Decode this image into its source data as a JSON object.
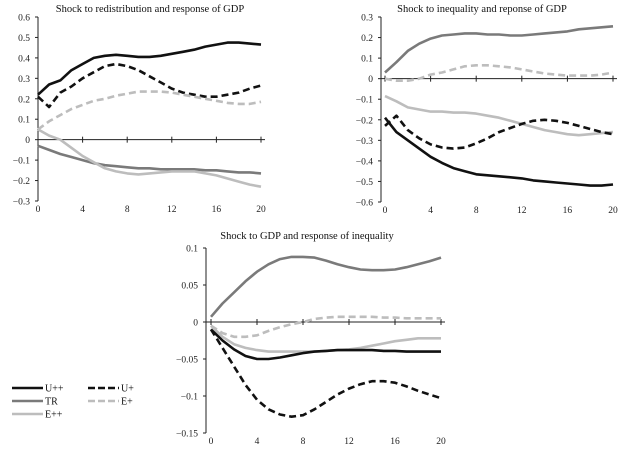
{
  "series_styles": {
    "U++": {
      "color": "#111111",
      "dashed": false
    },
    "U+": {
      "color": "#111111",
      "dashed": true
    },
    "TR": {
      "color": "#7a7a7a",
      "dashed": false
    },
    "E+": {
      "color": "#bdbdbd",
      "dashed": true
    },
    "E++": {
      "color": "#bdbdbd",
      "dashed": false
    }
  },
  "legend": [
    "U++",
    "U+",
    "TR",
    "E+",
    "E++"
  ],
  "chart_data": [
    {
      "type": "line",
      "title": "Shock to redistribution and response of GDP",
      "xlim": [
        0,
        20
      ],
      "xticks": [
        0,
        4,
        8,
        12,
        16,
        20
      ],
      "ylim": [
        -0.3,
        0.6
      ],
      "yticks": [
        -0.3,
        -0.2,
        -0.1,
        0,
        0.1,
        0.2,
        0.3,
        0.4,
        0.5,
        0.6
      ],
      "ytick_labels": [
        "−0.3",
        "−0.2",
        "−0.1",
        "0",
        "0.1",
        "0.2",
        "0.3",
        "0.4",
        "0.5",
        "0.6"
      ],
      "x": [
        0,
        1,
        2,
        3,
        4,
        5,
        6,
        7,
        8,
        9,
        10,
        11,
        12,
        13,
        14,
        15,
        16,
        17,
        18,
        19,
        20
      ],
      "series": [
        {
          "name": "U++",
          "values": [
            0.22,
            0.27,
            0.29,
            0.34,
            0.37,
            0.4,
            0.41,
            0.415,
            0.41,
            0.405,
            0.405,
            0.41,
            0.42,
            0.43,
            0.44,
            0.455,
            0.465,
            0.475,
            0.475,
            0.47,
            0.465
          ]
        },
        {
          "name": "U+",
          "values": [
            0.21,
            0.16,
            0.23,
            0.26,
            0.3,
            0.33,
            0.36,
            0.37,
            0.36,
            0.34,
            0.31,
            0.28,
            0.25,
            0.23,
            0.22,
            0.21,
            0.21,
            0.22,
            0.23,
            0.25,
            0.265
          ]
        },
        {
          "name": "E+",
          "values": [
            0.05,
            0.09,
            0.12,
            0.15,
            0.17,
            0.19,
            0.2,
            0.215,
            0.225,
            0.235,
            0.235,
            0.235,
            0.23,
            0.22,
            0.21,
            0.2,
            0.19,
            0.18,
            0.175,
            0.175,
            0.185
          ]
        },
        {
          "name": "TR",
          "values": [
            -0.03,
            -0.05,
            -0.07,
            -0.085,
            -0.1,
            -0.115,
            -0.125,
            -0.13,
            -0.135,
            -0.14,
            -0.14,
            -0.145,
            -0.145,
            -0.145,
            -0.145,
            -0.15,
            -0.15,
            -0.155,
            -0.16,
            -0.16,
            -0.165
          ]
        },
        {
          "name": "E++",
          "values": [
            0.05,
            0.02,
            0.0,
            -0.04,
            -0.08,
            -0.11,
            -0.14,
            -0.155,
            -0.165,
            -0.17,
            -0.165,
            -0.16,
            -0.155,
            -0.155,
            -0.155,
            -0.165,
            -0.175,
            -0.19,
            -0.205,
            -0.22,
            -0.23
          ]
        }
      ]
    },
    {
      "type": "line",
      "title": "Shock to inequality and reponse of GDP",
      "xlim": [
        0,
        20
      ],
      "xticks": [
        0,
        4,
        8,
        12,
        16,
        20
      ],
      "ylim": [
        -0.6,
        0.3
      ],
      "yticks": [
        -0.6,
        -0.5,
        -0.4,
        -0.3,
        -0.2,
        -0.1,
        0,
        0.1,
        0.2,
        0.3
      ],
      "ytick_labels": [
        "−0.6",
        "−0.5",
        "−0.4",
        "−0.3",
        "−0.2",
        "−0.1",
        "0",
        "0.1",
        "0.2",
        "0.3"
      ],
      "x": [
        0,
        1,
        2,
        3,
        4,
        5,
        6,
        7,
        8,
        9,
        10,
        11,
        12,
        13,
        14,
        15,
        16,
        17,
        18,
        19,
        20
      ],
      "series": [
        {
          "name": "TR",
          "values": [
            0.03,
            0.08,
            0.135,
            0.17,
            0.195,
            0.21,
            0.215,
            0.22,
            0.22,
            0.215,
            0.215,
            0.21,
            0.21,
            0.215,
            0.22,
            0.225,
            0.23,
            0.24,
            0.245,
            0.25,
            0.255
          ]
        },
        {
          "name": "E+",
          "values": [
            0.0,
            -0.01,
            -0.01,
            0.0,
            0.02,
            0.03,
            0.045,
            0.06,
            0.065,
            0.065,
            0.06,
            0.055,
            0.045,
            0.035,
            0.025,
            0.02,
            0.015,
            0.015,
            0.015,
            0.02,
            0.03
          ]
        },
        {
          "name": "E++",
          "values": [
            -0.085,
            -0.11,
            -0.14,
            -0.15,
            -0.16,
            -0.16,
            -0.165,
            -0.165,
            -0.17,
            -0.18,
            -0.19,
            -0.205,
            -0.22,
            -0.235,
            -0.25,
            -0.26,
            -0.27,
            -0.275,
            -0.27,
            -0.265,
            -0.26
          ]
        },
        {
          "name": "U+",
          "values": [
            -0.23,
            -0.18,
            -0.25,
            -0.29,
            -0.32,
            -0.335,
            -0.34,
            -0.335,
            -0.315,
            -0.29,
            -0.26,
            -0.24,
            -0.22,
            -0.205,
            -0.2,
            -0.205,
            -0.215,
            -0.23,
            -0.245,
            -0.26,
            -0.27
          ]
        },
        {
          "name": "U++",
          "values": [
            -0.19,
            -0.26,
            -0.3,
            -0.34,
            -0.38,
            -0.41,
            -0.435,
            -0.45,
            -0.465,
            -0.47,
            -0.475,
            -0.48,
            -0.485,
            -0.495,
            -0.5,
            -0.505,
            -0.51,
            -0.515,
            -0.52,
            -0.52,
            -0.515
          ]
        }
      ]
    },
    {
      "type": "line",
      "title": "Shock to GDP and response of inequality",
      "xlim": [
        0,
        20
      ],
      "xticks": [
        0,
        4,
        8,
        12,
        16,
        20
      ],
      "ylim": [
        -0.15,
        0.1
      ],
      "yticks": [
        -0.15,
        -0.1,
        -0.05,
        0,
        0.05,
        0.1
      ],
      "ytick_labels": [
        "−0.15",
        "−0.1",
        "−0.05",
        "0",
        "0.05",
        "0.1"
      ],
      "x": [
        0,
        1,
        2,
        3,
        4,
        5,
        6,
        7,
        8,
        9,
        10,
        11,
        12,
        13,
        14,
        15,
        16,
        17,
        18,
        19,
        20
      ],
      "series": [
        {
          "name": "TR",
          "values": [
            0.007,
            0.025,
            0.04,
            0.055,
            0.068,
            0.078,
            0.085,
            0.088,
            0.088,
            0.087,
            0.083,
            0.078,
            0.074,
            0.071,
            0.07,
            0.07,
            0.071,
            0.074,
            0.078,
            0.082,
            0.087
          ]
        },
        {
          "name": "E+",
          "values": [
            -0.005,
            -0.015,
            -0.02,
            -0.02,
            -0.018,
            -0.012,
            -0.007,
            -0.003,
            0.0,
            0.004,
            0.006,
            0.007,
            0.007,
            0.007,
            0.007,
            0.006,
            0.006,
            0.005,
            0.005,
            0.005,
            0.005
          ]
        },
        {
          "name": "E++",
          "values": [
            -0.005,
            -0.02,
            -0.03,
            -0.035,
            -0.038,
            -0.04,
            -0.04,
            -0.04,
            -0.04,
            -0.04,
            -0.039,
            -0.038,
            -0.037,
            -0.035,
            -0.032,
            -0.029,
            -0.026,
            -0.024,
            -0.022,
            -0.022,
            -0.022
          ]
        },
        {
          "name": "U++",
          "values": [
            -0.01,
            -0.025,
            -0.037,
            -0.046,
            -0.05,
            -0.05,
            -0.048,
            -0.045,
            -0.042,
            -0.04,
            -0.039,
            -0.038,
            -0.038,
            -0.038,
            -0.038,
            -0.039,
            -0.039,
            -0.04,
            -0.04,
            -0.04,
            -0.04
          ]
        },
        {
          "name": "U+",
          "values": [
            -0.01,
            -0.035,
            -0.06,
            -0.085,
            -0.105,
            -0.118,
            -0.125,
            -0.128,
            -0.126,
            -0.118,
            -0.108,
            -0.098,
            -0.09,
            -0.084,
            -0.08,
            -0.08,
            -0.082,
            -0.087,
            -0.093,
            -0.098,
            -0.103
          ]
        }
      ]
    }
  ]
}
